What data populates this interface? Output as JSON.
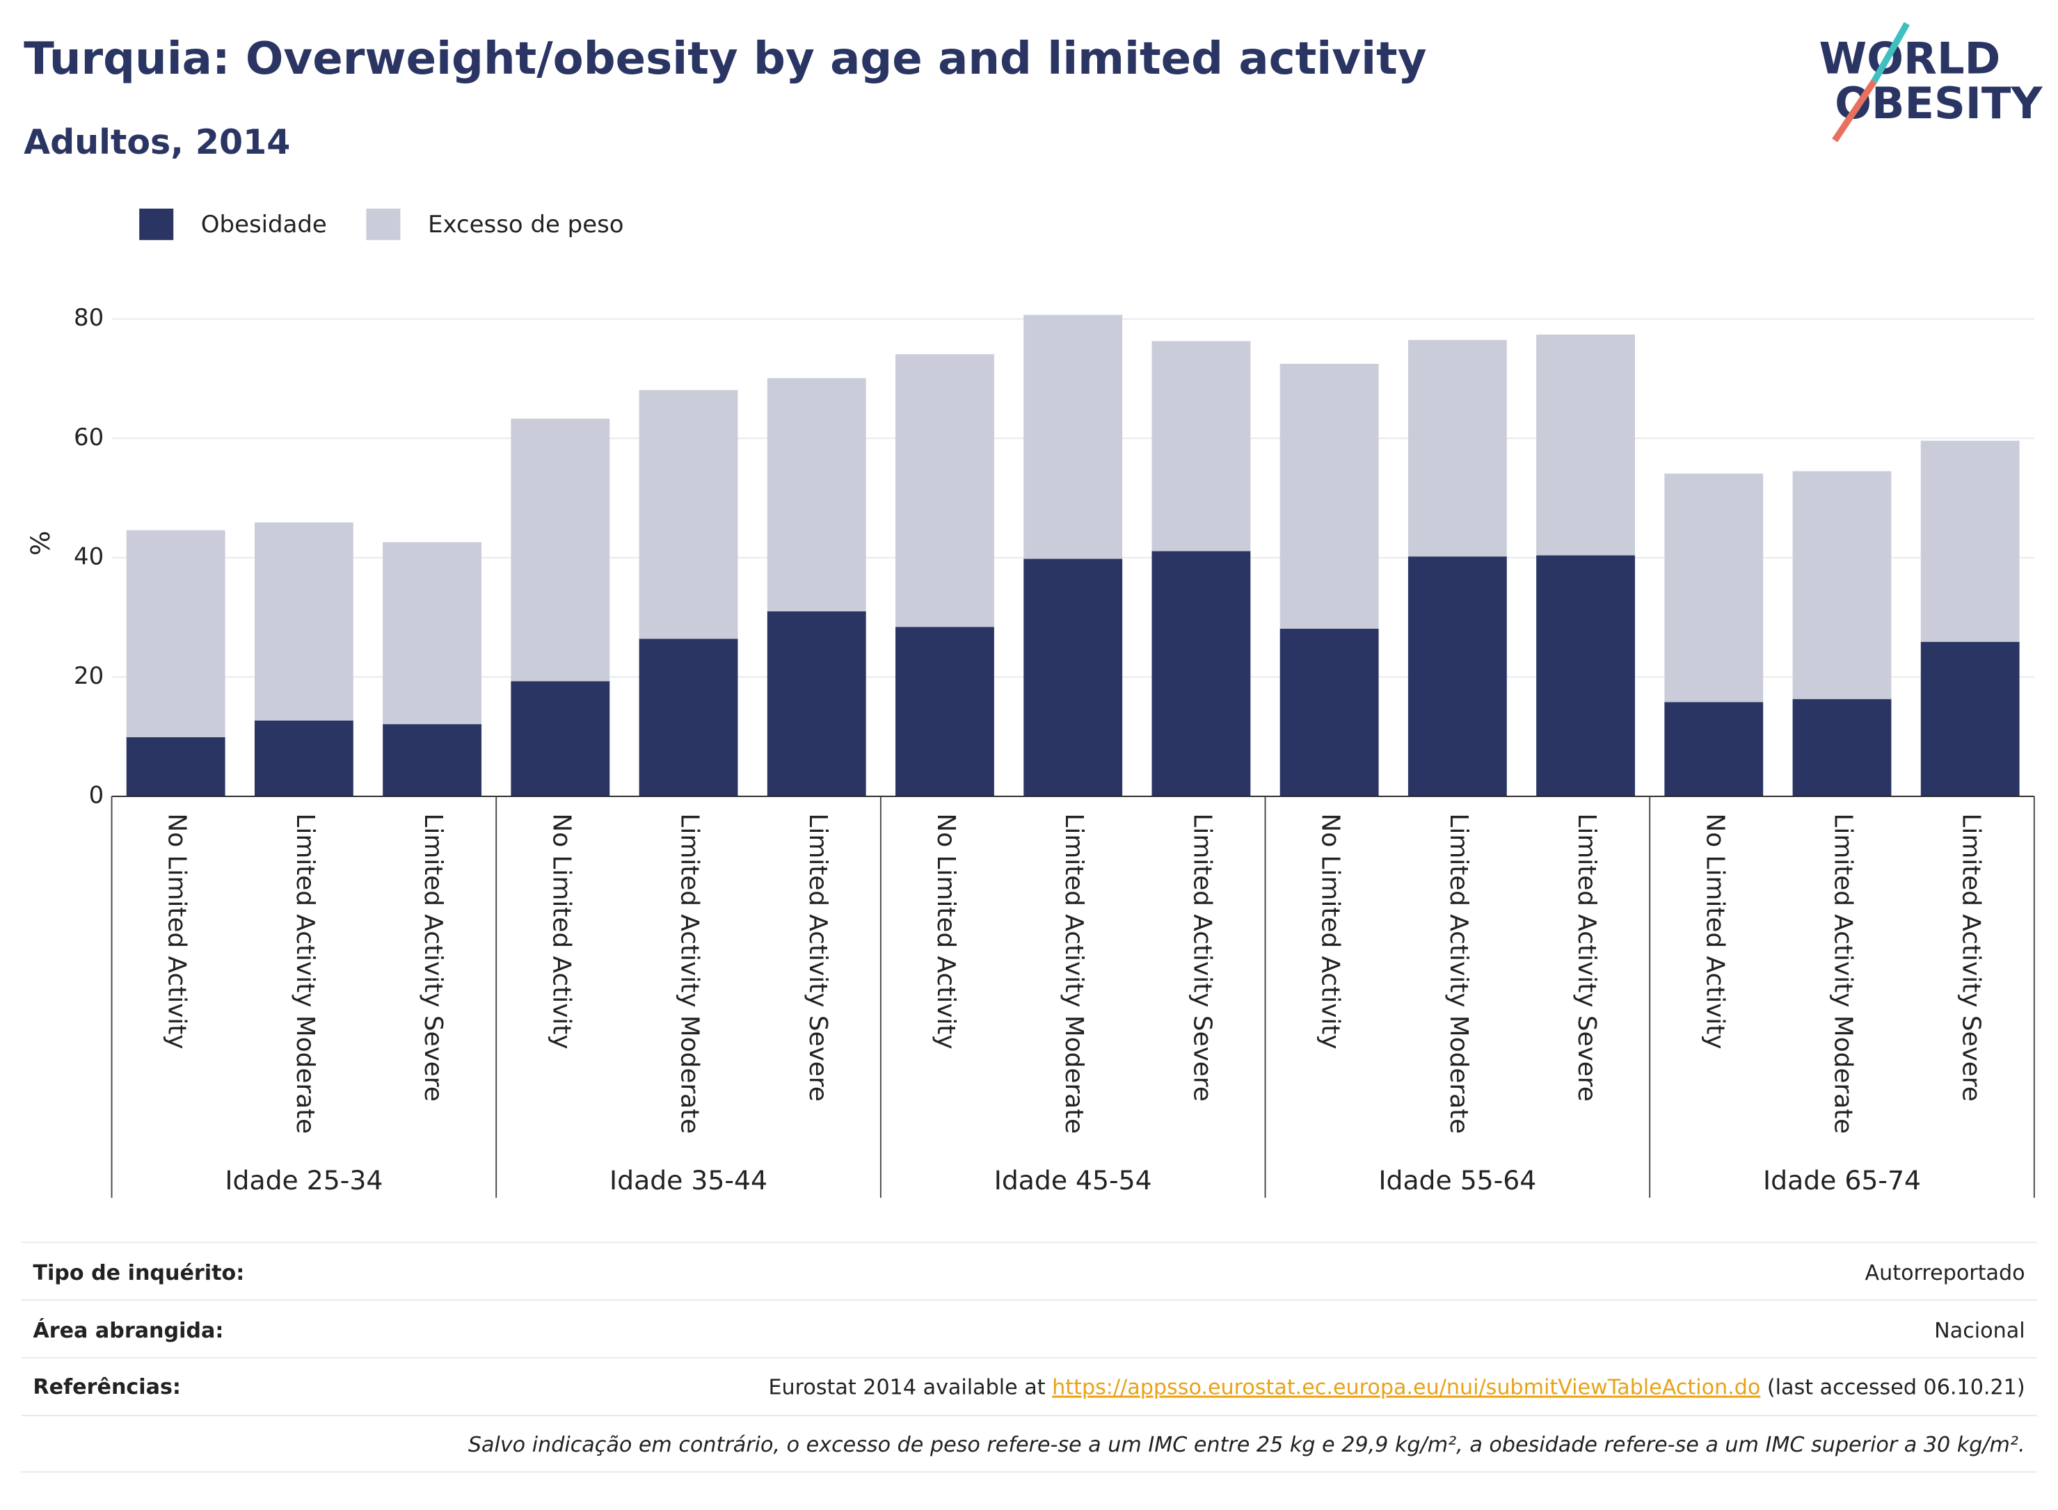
{
  "chart_data": {
    "type": "stacked_bar",
    "title": "Turquia: Overweight/obesity by age and limited activity",
    "subtitle": "Adultos, 2014",
    "y_label": "%",
    "categories": [
      "No Limited Activity",
      "Limited Activity Moderate",
      "Limited Activity Severe",
      "No Limited Activity",
      "Limited Activity Moderate",
      "Limited Activity Severe",
      "No Limited Activity",
      "Limited Activity Moderate",
      "Limited Activity Severe",
      "No Limited Activity",
      "Limited Activity Moderate",
      "Limited Activity Severe",
      "No Limited Activity",
      "Limited Activity Moderate",
      "Limited Activity Severe"
    ],
    "groups": [
      "Idade 25-34",
      "Idade 35-44",
      "Idade 45-54",
      "Idade 55-64",
      "Idade 65-74"
    ],
    "series": [
      {
        "name": "Obesidade",
        "color": "#2a3563",
        "values": [
          9.9,
          12.7,
          12.1,
          19.3,
          26.4,
          31.0,
          28.4,
          39.8,
          41.1,
          28.1,
          40.2,
          40.4,
          15.8,
          16.3,
          25.9
        ]
      },
      {
        "name": "Excesso de peso",
        "color": "#cacdd9",
        "values": [
          34.7,
          33.2,
          30.5,
          44.0,
          41.7,
          39.1,
          45.7,
          40.9,
          35.2,
          44.4,
          36.3,
          37.0,
          38.3,
          38.2,
          33.7
        ]
      }
    ],
    "ylim": [
      0,
      84
    ],
    "yticks": [
      0,
      20,
      40,
      60,
      80
    ],
    "grid": true,
    "legend": "top-left"
  },
  "logo": {
    "line1": "WORLD",
    "line2": "OBESITY"
  },
  "footer": {
    "survey": {
      "label": "Tipo de inquérito:",
      "value": "Autorreportado"
    },
    "area": {
      "label": "Área abrangida:",
      "value": "Nacional"
    },
    "references": {
      "label": "Referências:",
      "prefix": "Eurostat 2014 available at ",
      "link": "https://appsso.eurostat.ec.europa.eu/nui/submitViewTableAction.do",
      "suffix": " (last accessed 06.10.21)"
    },
    "note": "Salvo indicação em contrário, o excesso de peso refere-se a um IMC entre 25 kg e 29,9 kg/m², a obesidade refere-se a um IMC superior a 30 kg/m²."
  }
}
